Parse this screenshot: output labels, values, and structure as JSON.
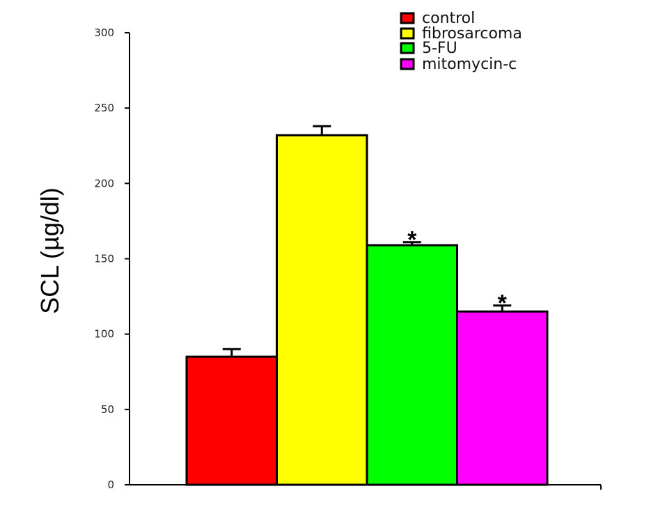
{
  "chart_data": {
    "type": "bar",
    "title": "",
    "xlabel": "",
    "ylabel": "SCL (µg/dl)",
    "ylim": [
      0,
      300
    ],
    "yticks": [
      0,
      50,
      100,
      150,
      200,
      250,
      300
    ],
    "grid": false,
    "legend_position": "top-right",
    "categories": [
      "control",
      "fibrosarcoma",
      "5-FU",
      "mitomycin-c"
    ],
    "values": [
      85,
      232,
      159,
      115
    ],
    "errors": [
      5,
      6,
      2,
      4
    ],
    "colors": [
      "#ff0000",
      "#ffff00",
      "#00ff00",
      "#ff00ff"
    ],
    "annotations": [
      {
        "category": "5-FU",
        "text": "*"
      },
      {
        "category": "mitomycin-c",
        "text": "*"
      }
    ],
    "legend": [
      "control",
      "fibrosarcoma",
      "5-FU",
      "mitomycin-c"
    ]
  }
}
